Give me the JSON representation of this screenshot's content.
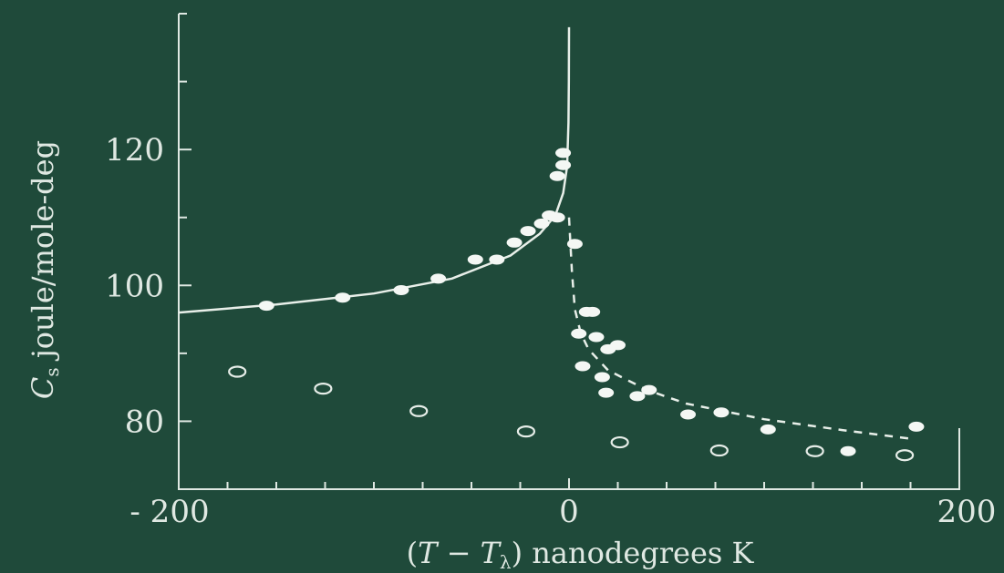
{
  "chart_data": {
    "type": "scatter",
    "title": "",
    "xlabel": "(T − T_λ) nanodegrees K",
    "xlabel_parts": {
      "pre": "(",
      "T1": "T",
      "minus": " − ",
      "T2": "T",
      "sub": "λ",
      "post": ") nanodegrees K"
    },
    "ylabel": "Cₛ joule/mole-deg",
    "ylabel_parts": {
      "C": "C",
      "sub": "s",
      "rest": " joule/mole-deg"
    },
    "xlim": [
      -200,
      200
    ],
    "ylim": [
      70,
      140
    ],
    "x_ticks": [
      -200,
      0,
      200
    ],
    "x_tick_labels": [
      "- 200",
      "0",
      "200"
    ],
    "y_ticks": [
      80,
      100,
      120
    ],
    "y_tick_labels": [
      "80",
      "100",
      "120"
    ],
    "grid": false,
    "colors": {
      "background": "#1f4a3a",
      "ink": "#e8efe9"
    },
    "series": [
      {
        "marker": "filled-circle",
        "points": [
          [
            -155,
            97.0
          ],
          [
            -116,
            98.2
          ],
          [
            -86,
            99.3
          ],
          [
            -67,
            101.0
          ],
          [
            -48,
            103.8
          ],
          [
            -37,
            103.8
          ],
          [
            -28,
            106.3
          ],
          [
            -21,
            108.0
          ],
          [
            -14,
            109.1
          ],
          [
            -10,
            110.3
          ],
          [
            -6,
            110.0
          ],
          [
            -6,
            116.1
          ],
          [
            -3,
            117.7
          ],
          [
            -3,
            119.5
          ],
          [
            3,
            106.1
          ],
          [
            9,
            96.1
          ],
          [
            12,
            96.1
          ],
          [
            5,
            92.9
          ],
          [
            14,
            92.4
          ],
          [
            20,
            90.6
          ],
          [
            25,
            91.2
          ],
          [
            7,
            88.1
          ],
          [
            17,
            86.5
          ],
          [
            19,
            84.2
          ],
          [
            35,
            83.7
          ],
          [
            41,
            84.6
          ],
          [
            61,
            81.0
          ],
          [
            78,
            81.3
          ],
          [
            102,
            78.8
          ],
          [
            143,
            75.6
          ],
          [
            178,
            79.2
          ]
        ]
      },
      {
        "marker": "open-circle",
        "points": [
          [
            -170,
            87.3
          ],
          [
            -126,
            84.8
          ],
          [
            -77,
            81.5
          ],
          [
            -22,
            78.5
          ],
          [
            26,
            76.9
          ],
          [
            77,
            75.7
          ],
          [
            126,
            75.6
          ],
          [
            172,
            75.0
          ]
        ]
      }
    ],
    "curves": [
      {
        "style": "solid",
        "points": [
          [
            -200,
            96.0
          ],
          [
            -150,
            97.2
          ],
          [
            -100,
            98.8
          ],
          [
            -60,
            101.0
          ],
          [
            -30,
            104.4
          ],
          [
            -15,
            107.6
          ],
          [
            -7,
            110.3
          ],
          [
            -3,
            113.6
          ],
          [
            -1,
            117.5
          ],
          [
            -0.3,
            124
          ],
          [
            -0.1,
            130
          ],
          [
            0,
            138
          ]
        ]
      },
      {
        "style": "dashed",
        "points": [
          [
            0,
            110
          ],
          [
            1.5,
            102
          ],
          [
            3,
            96.5
          ],
          [
            6,
            93
          ],
          [
            10,
            90.6
          ],
          [
            20,
            87.5
          ],
          [
            40,
            84.6
          ],
          [
            60,
            82.6
          ],
          [
            100,
            80.3
          ],
          [
            140,
            78.7
          ],
          [
            176,
            77.4
          ]
        ]
      }
    ]
  }
}
